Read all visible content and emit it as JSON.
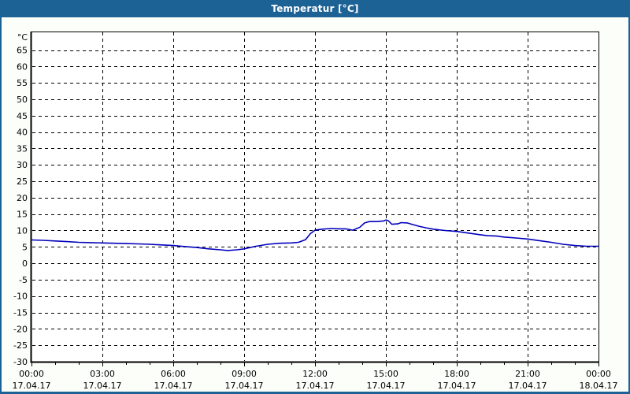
{
  "window": {
    "title": "Temperatur [°C]"
  },
  "colors": {
    "titlebar_bg": "#1d6295",
    "titlebar_text": "#ffffff",
    "window_border": "#1d6295",
    "content_bg": "#fbfef9",
    "plot_bg": "#ffffff",
    "grid": "#000000",
    "axis": "#000000",
    "tick_text": "#000000",
    "line": "#0000bb"
  },
  "chart_data": {
    "type": "line",
    "title": "Temperatur [°C]",
    "y_unit_label": "°C",
    "xlabel": "",
    "ylabel": "",
    "ylim": [
      -30,
      70.6
    ],
    "y_ticks": [
      65,
      60,
      55,
      50,
      45,
      40,
      35,
      30,
      25,
      20,
      15,
      10,
      5,
      0,
      -5,
      -10,
      -15,
      -20,
      -25,
      -30
    ],
    "grid": "dashed",
    "legend": "none",
    "x_hours_range": [
      0,
      24
    ],
    "x_major_every_hours": 3,
    "x_minor_every_hours": 1,
    "x_major_ticks": [
      {
        "time": "00:00",
        "date": "17.04.17"
      },
      {
        "time": "03:00",
        "date": "17.04.17"
      },
      {
        "time": "06:00",
        "date": "17.04.17"
      },
      {
        "time": "09:00",
        "date": "17.04.17"
      },
      {
        "time": "12:00",
        "date": "17.04.17"
      },
      {
        "time": "15:00",
        "date": "17.04.17"
      },
      {
        "time": "18:00",
        "date": "17.04.17"
      },
      {
        "time": "21:00",
        "date": "17.04.17"
      },
      {
        "time": "00:00",
        "date": "18.04.17"
      }
    ],
    "series": [
      {
        "name": "Temperatur",
        "color": "#0000bb",
        "points_hour_degC": [
          [
            0,
            7.1
          ],
          [
            0.5,
            7.0
          ],
          [
            1,
            6.8
          ],
          [
            1.5,
            6.6
          ],
          [
            2,
            6.4
          ],
          [
            2.5,
            6.3
          ],
          [
            3,
            6.2
          ],
          [
            3.5,
            6.1
          ],
          [
            4,
            6.0
          ],
          [
            4.5,
            5.9
          ],
          [
            5,
            5.8
          ],
          [
            5.5,
            5.6
          ],
          [
            6,
            5.4
          ],
          [
            6.5,
            5.1
          ],
          [
            7,
            4.8
          ],
          [
            7.5,
            4.4
          ],
          [
            8,
            4.1
          ],
          [
            8.3,
            3.9
          ],
          [
            8.7,
            4.1
          ],
          [
            9,
            4.4
          ],
          [
            9.5,
            5.2
          ],
          [
            10,
            5.8
          ],
          [
            10.5,
            6.1
          ],
          [
            11,
            6.2
          ],
          [
            11.3,
            6.4
          ],
          [
            11.6,
            7.2
          ],
          [
            11.8,
            9.0
          ],
          [
            12,
            10.1
          ],
          [
            12.3,
            10.4
          ],
          [
            12.7,
            10.6
          ],
          [
            13,
            10.5
          ],
          [
            13.3,
            10.5
          ],
          [
            13.6,
            10.1
          ],
          [
            13.9,
            11.0
          ],
          [
            14.1,
            12.3
          ],
          [
            14.3,
            12.7
          ],
          [
            14.6,
            12.7
          ],
          [
            14.9,
            12.9
          ],
          [
            15,
            13.2
          ],
          [
            15.1,
            13.0
          ],
          [
            15.25,
            11.9
          ],
          [
            15.5,
            12.0
          ],
          [
            15.65,
            12.4
          ],
          [
            15.9,
            12.3
          ],
          [
            16.1,
            11.9
          ],
          [
            16.4,
            11.3
          ],
          [
            16.7,
            10.8
          ],
          [
            17,
            10.4
          ],
          [
            17.5,
            10.0
          ],
          [
            18,
            9.7
          ],
          [
            18.5,
            9.2
          ],
          [
            19,
            8.7
          ],
          [
            19.3,
            8.4
          ],
          [
            19.7,
            8.3
          ],
          [
            20,
            8.0
          ],
          [
            20.5,
            7.7
          ],
          [
            21,
            7.4
          ],
          [
            21.5,
            6.9
          ],
          [
            22,
            6.4
          ],
          [
            22.5,
            5.8
          ],
          [
            23,
            5.4
          ],
          [
            23.5,
            5.2
          ],
          [
            24,
            5.2
          ]
        ]
      }
    ]
  }
}
